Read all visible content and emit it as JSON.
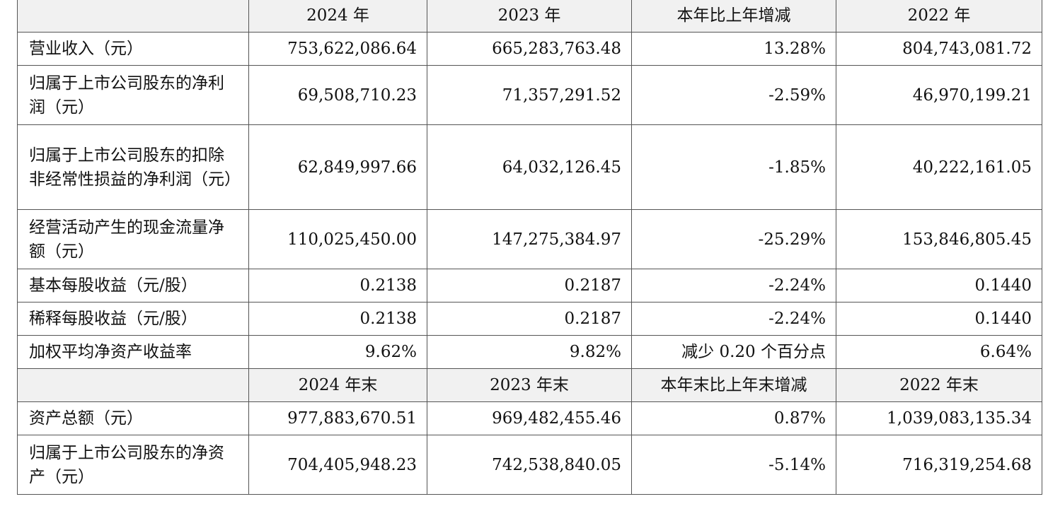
{
  "header1": [
    "",
    "2024 年",
    "2023 年",
    "本年比上年增减",
    "2022 年"
  ],
  "rows1": [
    {
      "label": "营业收入（元）",
      "v2024": "753,622,086.64",
      "v2023": "665,283,763.48",
      "change": "13.28%",
      "v2022": "804,743,081.72"
    },
    {
      "label": "归属于上市公司股东的净利润（元）",
      "v2024": "69,508,710.23",
      "v2023": "71,357,291.52",
      "change": "-2.59%",
      "v2022": "46,970,199.21"
    },
    {
      "label": "归属于上市公司股东的扣除非经常性损益的净利润（元）",
      "v2024": "62,849,997.66",
      "v2023": "64,032,126.45",
      "change": "-1.85%",
      "v2022": "40,222,161.05"
    },
    {
      "label": "经营活动产生的现金流量净额（元）",
      "v2024": "110,025,450.00",
      "v2023": "147,275,384.97",
      "change": "-25.29%",
      "v2022": "153,846,805.45"
    },
    {
      "label": "基本每股收益（元/股）",
      "v2024": "0.2138",
      "v2023": "0.2187",
      "change": "-2.24%",
      "v2022": "0.1440"
    },
    {
      "label": "稀释每股收益（元/股）",
      "v2024": "0.2138",
      "v2023": "0.2187",
      "change": "-2.24%",
      "v2022": "0.1440"
    },
    {
      "label": "加权平均净资产收益率",
      "v2024": "9.62%",
      "v2023": "9.82%",
      "change": "减少 0.20 个百分点",
      "v2022": "6.64%"
    }
  ],
  "header2": [
    "",
    "2024 年末",
    "2023 年末",
    "本年末比上年末增减",
    "2022 年末"
  ],
  "rows2": [
    {
      "label": "资产总额（元）",
      "v2024": "977,883,670.51",
      "v2023": "969,482,455.46",
      "change": "0.87%",
      "v2022": "1,039,083,135.34"
    },
    {
      "label": "归属于上市公司股东的净资产（元）",
      "v2024": "704,405,948.23",
      "v2023": "742,538,840.05",
      "change": "-5.14%",
      "v2022": "716,319,254.68"
    }
  ]
}
